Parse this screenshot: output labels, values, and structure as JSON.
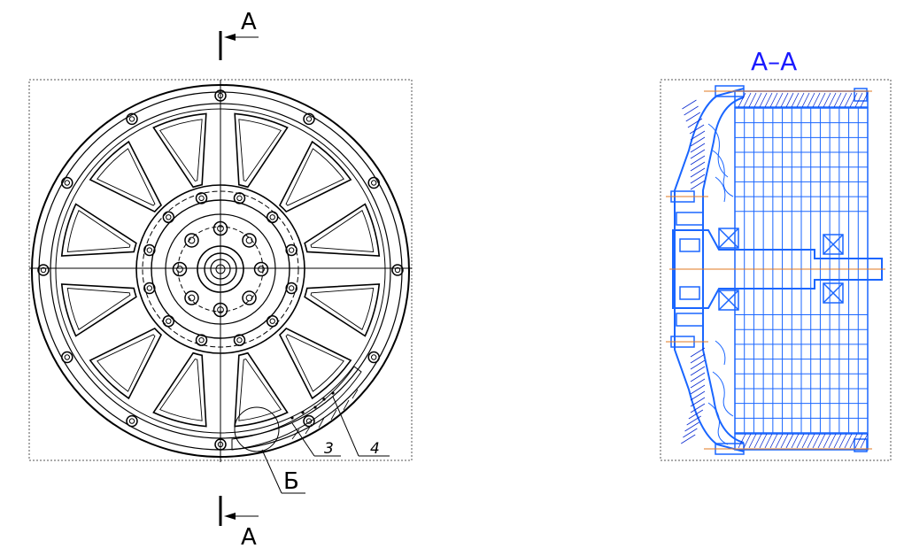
{
  "labels": {
    "section_mark_top": "A",
    "section_mark_bottom": "A",
    "detail_mark": "Б",
    "leader_3": "3",
    "leader_4": "4",
    "section_title": "A–A"
  },
  "colors": {
    "line": "#000000",
    "frame": "#555555",
    "section_blue": "#1a66ff",
    "section_dark_blue": "#0a2ad0",
    "axis_orange": "#e07820",
    "title_blue": "#1a1aff"
  },
  "views": {
    "front_view": {
      "spokes": 12,
      "rim_bolts": 12,
      "hub_bolts_outer": 12,
      "hub_bolts_inner": 8
    },
    "section_view": {
      "grid_columns": 14,
      "grid_rows": 22
    }
  }
}
